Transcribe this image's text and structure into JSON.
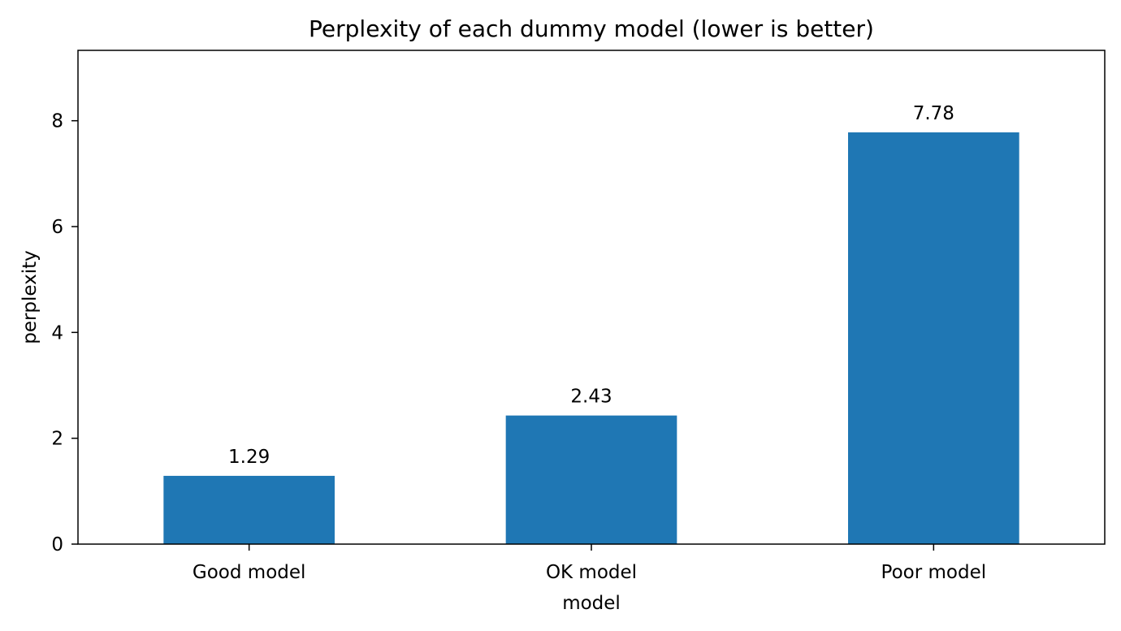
{
  "chart_data": {
    "type": "bar",
    "title": "Perplexity of each dummy model (lower is better)",
    "xlabel": "model",
    "ylabel": "perplexity",
    "categories": [
      "Good model",
      "OK model",
      "Poor model"
    ],
    "values": [
      1.29,
      2.43,
      7.78
    ],
    "data_labels": [
      "1.29",
      "2.43",
      "7.78"
    ],
    "ylim": [
      0,
      9.33
    ],
    "yticks": [
      0,
      2,
      4,
      6,
      8
    ],
    "ytick_labels": [
      "0",
      "2",
      "4",
      "6",
      "8"
    ],
    "grid": false,
    "legend": "none",
    "bar_color": "#1f77b4"
  }
}
